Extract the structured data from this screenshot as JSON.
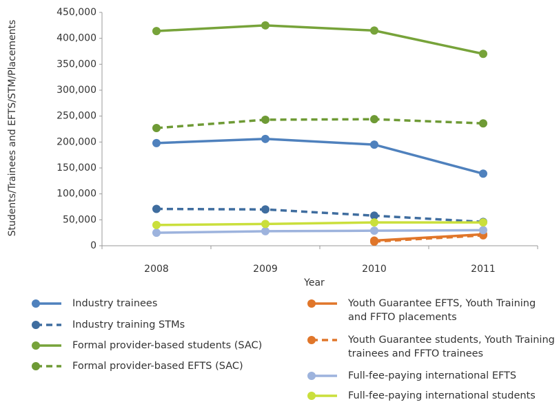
{
  "chart_data": {
    "type": "line",
    "x_label": "Year",
    "y_label": "Students/Trainees and EFTS/STM/Placements",
    "categories": [
      "2008",
      "2009",
      "2010",
      "2011"
    ],
    "ylim": [
      0,
      450000
    ],
    "yticks": [
      0,
      {
        "value": 50000,
        "label": "50,000"
      },
      {
        "value": 100000,
        "label": "100,000"
      },
      {
        "value": 150000,
        "label": "150,000"
      },
      {
        "value": 200000,
        "label": "200,000"
      },
      {
        "value": 250000,
        "label": "250,000"
      },
      {
        "value": 300000,
        "label": "300,000"
      },
      {
        "value": 350000,
        "label": "350,000"
      },
      {
        "value": 400000,
        "label": "400,000"
      },
      {
        "value": 450000,
        "label": "450,000"
      }
    ],
    "grid": false,
    "series": [
      {
        "name": "Industry trainees",
        "color": "#4f81bd",
        "dashed": false,
        "values": [
          198000,
          206000,
          195000,
          139000
        ]
      },
      {
        "name": "Industry training STMs",
        "color": "#3f6d9f",
        "dashed": true,
        "values": [
          71000,
          70000,
          58000,
          46000
        ]
      },
      {
        "name": "Formal provider-based students (SAC)",
        "color": "#77a33a",
        "dashed": false,
        "values": [
          414000,
          425000,
          415000,
          370000
        ]
      },
      {
        "name": "Formal provider-based EFTS (SAC)",
        "color": "#6e9a35",
        "dashed": true,
        "values": [
          227000,
          243000,
          244000,
          236000
        ]
      },
      {
        "name": "Youth Guarantee EFTS, Youth Training and FFTO placements",
        "color": "#e0762a",
        "dashed": false,
        "values": [
          null,
          null,
          10000,
          22000
        ]
      },
      {
        "name": "Youth Guarantee students, Youth Training trainees and FFTO trainees",
        "color": "#e0762a",
        "dashed": true,
        "values": [
          null,
          null,
          8000,
          20000
        ]
      },
      {
        "name": "Full-fee-paying international EFTS",
        "color": "#9db3dd",
        "dashed": false,
        "values": [
          25000,
          28000,
          29000,
          30000
        ]
      },
      {
        "name": "Full-fee-paying international students",
        "color": "#cadf3c",
        "dashed": false,
        "values": [
          40000,
          42000,
          45000,
          45000
        ]
      }
    ]
  }
}
